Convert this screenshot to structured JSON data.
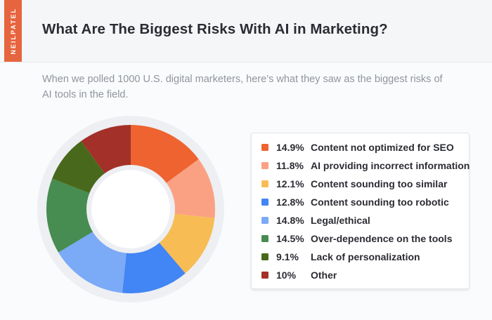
{
  "brand": {
    "name": "NEILPATEL",
    "color": "#e6643e"
  },
  "header": {
    "title": "What Are The Biggest Risks With AI in Marketing?"
  },
  "subtitle": "When we polled 1000 U.S. digital marketers, here’s what they saw as the biggest risks of AI tools in the field.",
  "chart_data": {
    "type": "pie",
    "donut": true,
    "start_angle_deg": 0,
    "direction": "clockwise",
    "title": "What Are The Biggest Risks With AI in Marketing?",
    "categories": [
      "Content not optimized for SEO",
      "AI providing incorrect information",
      "Content sounding too similar",
      "Content sounding too robotic",
      "Legal/ethical",
      "Over-dependence on the tools",
      "Lack of personalization",
      "Other"
    ],
    "values": [
      14.9,
      11.8,
      12.1,
      12.8,
      14.8,
      14.5,
      9.1,
      10
    ],
    "value_labels": [
      "14.9%",
      "11.8%",
      "12.1%",
      "12.8%",
      "14.8%",
      "14.5%",
      "9.1%",
      "10%"
    ],
    "colors": [
      "#ee6330",
      "#fba183",
      "#f7bd54",
      "#4285f4",
      "#7baaf7",
      "#478c51",
      "#48691b",
      "#a33029"
    ],
    "plate_color": "#edeff3",
    "hole_color": "#ffffff",
    "legend_position": "right"
  }
}
